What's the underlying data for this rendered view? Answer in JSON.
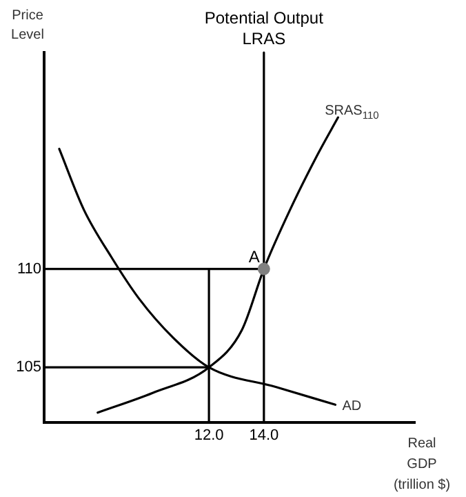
{
  "chart_data": {
    "type": "line",
    "title": "Potential Output",
    "xlabel": "Real GDP (trillion $)",
    "ylabel": "Price Level",
    "xlim": [
      6,
      19.5
    ],
    "ylim": [
      102.2,
      121
    ],
    "xticks": [
      {
        "value": 12,
        "label": "12.0"
      },
      {
        "value": 14,
        "label": "14.0"
      }
    ],
    "yticks": [
      105,
      110
    ],
    "grid": false,
    "legend": false,
    "marker": "none",
    "line_style": "solid",
    "annotations": [
      {
        "text": "A",
        "x": 14,
        "y": 110
      }
    ],
    "series": [
      {
        "name": "AD",
        "color": "#000000",
        "x": [
          6.55,
          7.45,
          8.45,
          9.45,
          10.7,
          12.0,
          14.45,
          16.6
        ],
        "values": [
          116.1,
          113.0,
          110.6,
          108.5,
          106.5,
          105.0,
          104.0,
          103.1
        ]
      },
      {
        "name": "SRAS$_{110}$",
        "color": "#000000",
        "x": [
          7.95,
          9.95,
          12.0,
          13.2,
          14.0,
          14.95,
          15.95,
          16.7
        ],
        "values": [
          102.7,
          103.7,
          105.0,
          106.9,
          110.0,
          113.0,
          115.8,
          117.7
        ]
      },
      {
        "name": "LRAS",
        "color": "#000000",
        "x": [
          14,
          14
        ],
        "values": [
          102.2,
          121
        ]
      },
      {
        "color": "#000000",
        "x": [
          6,
          14
        ],
        "values": [
          110,
          110
        ]
      },
      {
        "color": "#000000",
        "x": [
          6,
          12
        ],
        "values": [
          105,
          105
        ]
      },
      {
        "color": "#000000",
        "x": [
          12,
          12
        ],
        "values": [
          102.2,
          110
        ]
      },
      {
        "type": "scatter",
        "marker": "circle",
        "color": "#808080",
        "x": [
          14
        ],
        "values": [
          110
        ]
      }
    ]
  }
}
